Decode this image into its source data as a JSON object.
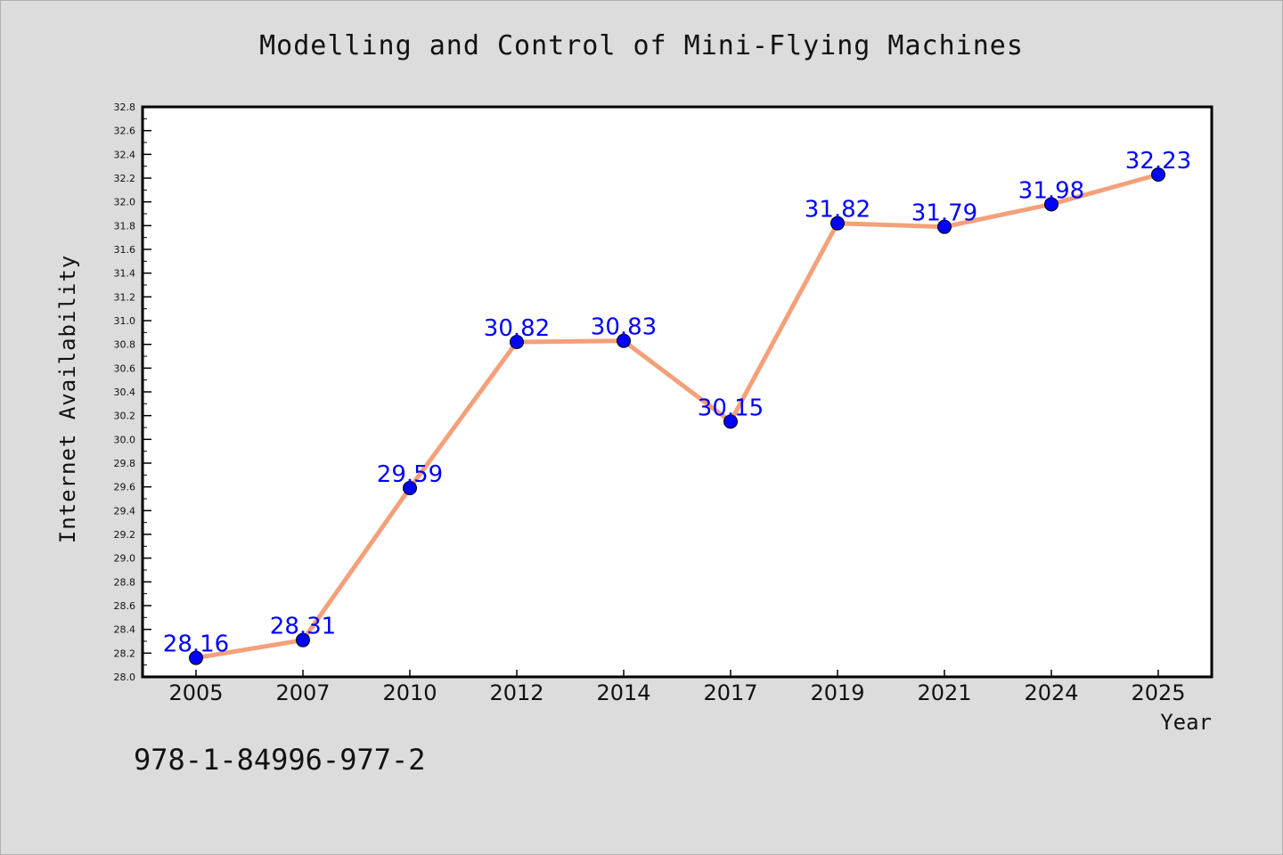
{
  "chart_data": {
    "type": "line",
    "title": "Modelling and Control of Mini-Flying Machines",
    "xlabel": "Year",
    "ylabel": "Internet Availability",
    "categories": [
      "2005",
      "2007",
      "2010",
      "2012",
      "2014",
      "2017",
      "2019",
      "2021",
      "2024",
      "2025"
    ],
    "values": [
      28.16,
      28.31,
      29.59,
      30.82,
      30.83,
      30.15,
      31.82,
      31.79,
      31.98,
      32.23
    ],
    "data_labels": [
      "28.16",
      "28.31",
      "29.59",
      "30.82",
      "30.83",
      "30.15",
      "31.82",
      "31.79",
      "31.98",
      "32.23"
    ],
    "ylim": [
      28.0,
      32.8
    ],
    "yticks": [
      "28.0",
      "28.2",
      "28.4",
      "28.6",
      "28.8",
      "29.0",
      "29.2",
      "29.4",
      "29.6",
      "29.8",
      "30.0",
      "30.2",
      "30.4",
      "30.6",
      "30.8",
      "31.0",
      "31.2",
      "31.4",
      "31.6",
      "31.8",
      "32.0",
      "32.2",
      "32.4",
      "32.6",
      "32.8"
    ],
    "grid": false,
    "line_color": "#f4a07a",
    "marker_color": "#0000ff",
    "label_color": "#0000ff"
  },
  "footer": {
    "isbn": "978-1-84996-977-2"
  },
  "colors": {
    "background": "#dcdcdc",
    "plot_background": "#ffffff"
  }
}
